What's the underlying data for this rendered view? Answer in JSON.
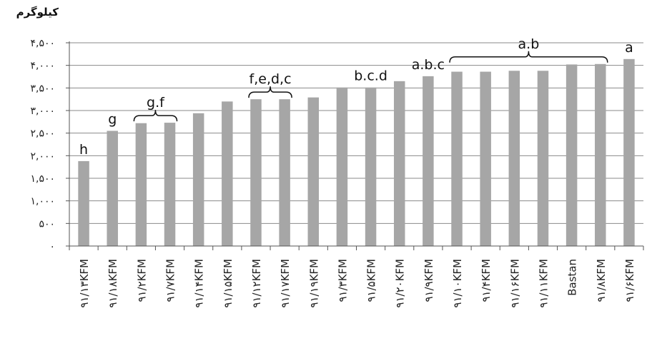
{
  "chart_data": {
    "type": "bar",
    "title": "",
    "ylabel": "کیلوگرم",
    "xlabel": "",
    "ylim": [
      0,
      4500
    ],
    "ytick_labels": [
      "۰",
      "۵۰۰",
      "۱,۰۰۰",
      "۱,۵۰۰",
      "۲,۰۰۰",
      "۲,۵۰۰",
      "۳,۰۰۰",
      "۳,۵۰۰",
      "۴,۰۰۰",
      "۴,۵۰۰"
    ],
    "grid": "horizontal",
    "bar_color": "#a6a6a6",
    "categories": [
      "۹۱/۱۳KFM",
      "۹۱/۱۸KFM",
      "۹۱/۲KFM",
      "۹۱/۷KFM",
      "۹۱/۱۴KFM",
      "۹۱/۱۵KFM",
      "۹۱/۱۲KFM",
      "۹۱/۱۷KFM",
      "۹۱/۱۹KFM",
      "۹۱/۳KFM",
      "۹۱/۵KFM",
      "۹۱/۲۰KFM",
      "۹۱/۹KFM",
      "۹۱/۱۰KFM",
      "۹۱/۴KFM",
      "۹۱/۱۶KFM",
      "۹۱/۱۱KFM",
      "Bastan",
      "۹۱/۸KFM",
      "۹۱/۶KFM"
    ],
    "values": [
      1880,
      2550,
      2720,
      2730,
      2940,
      3200,
      3250,
      3250,
      3290,
      3510,
      3510,
      3650,
      3760,
      3860,
      3860,
      3880,
      3880,
      4020,
      4030,
      4140
    ],
    "group_labels": [
      {
        "text": "h",
        "from": 0,
        "to": 0
      },
      {
        "text": "g",
        "from": 1,
        "to": 1
      },
      {
        "text": "g.f",
        "from": 2,
        "to": 3
      },
      {
        "text": "f,e,d,c",
        "from": 6,
        "to": 7
      },
      {
        "text": "b.c.d",
        "from": 10,
        "to": 10
      },
      {
        "text": "a.b.c",
        "from": 12,
        "to": 12
      },
      {
        "text": "a.b",
        "from": 13,
        "to": 18
      },
      {
        "text": "a",
        "from": 19,
        "to": 19
      }
    ]
  }
}
